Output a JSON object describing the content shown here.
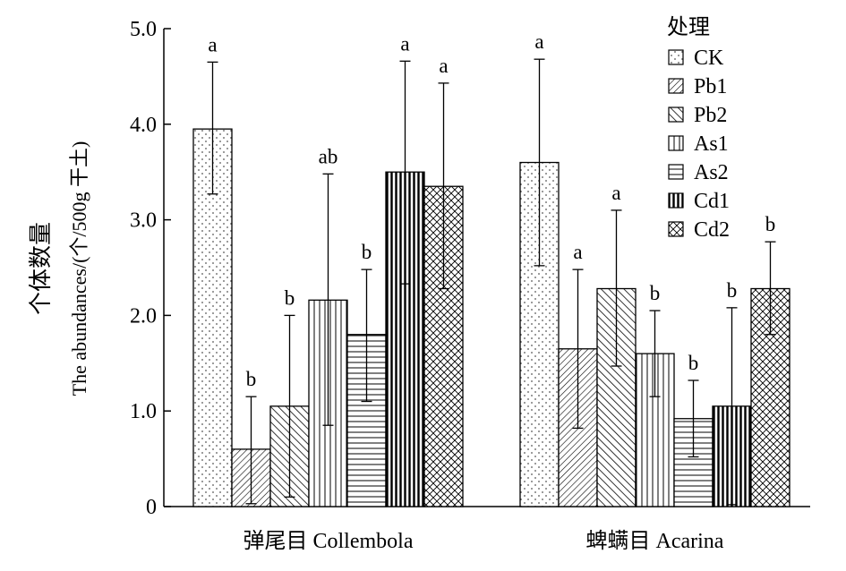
{
  "chart_data": {
    "type": "bar",
    "categories": [
      "弹尾目 Collembola",
      "蜱螨目 Acarina"
    ],
    "ylabel_cn": "个体数量",
    "ylabel_en": "The abundances/(个/500g 干土)",
    "ylim": [
      0,
      5
    ],
    "yticks": [
      {
        "value": 0,
        "label": "0"
      },
      {
        "value": 1,
        "label": "1.0"
      },
      {
        "value": 2,
        "label": "2.0"
      },
      {
        "value": 3,
        "label": "3.0"
      },
      {
        "value": 4,
        "label": "4.0"
      },
      {
        "value": 5,
        "label": "5.0"
      }
    ],
    "legend_title": "处理",
    "legend_position": "top-right",
    "grid": false,
    "series": [
      {
        "name": "CK",
        "pattern": "dots",
        "values": [
          3.95,
          3.6
        ],
        "err_low": [
          3.27,
          2.52
        ],
        "err_high": [
          4.65,
          4.68
        ],
        "letters": [
          "a",
          "a"
        ]
      },
      {
        "name": "Pb1",
        "pattern": "diag-fine",
        "values": [
          0.6,
          1.65
        ],
        "err_low": [
          0.03,
          0.82
        ],
        "err_high": [
          1.15,
          2.48
        ],
        "letters": [
          "b",
          "a"
        ]
      },
      {
        "name": "Pb2",
        "pattern": "diag-coarse",
        "values": [
          1.05,
          2.28
        ],
        "err_low": [
          0.1,
          1.47
        ],
        "err_high": [
          2.0,
          3.1
        ],
        "letters": [
          "b",
          "a"
        ]
      },
      {
        "name": "As1",
        "pattern": "vertical",
        "values": [
          2.16,
          1.6
        ],
        "err_low": [
          0.85,
          1.15
        ],
        "err_high": [
          3.48,
          2.05
        ],
        "letters": [
          "ab",
          "b"
        ]
      },
      {
        "name": "As2",
        "pattern": "horizontal",
        "values": [
          1.8,
          0.92
        ],
        "err_low": [
          1.1,
          0.52
        ],
        "err_high": [
          2.48,
          1.32
        ],
        "letters": [
          "b",
          "b"
        ]
      },
      {
        "name": "Cd1",
        "pattern": "vertical-bold",
        "values": [
          3.5,
          1.05
        ],
        "err_low": [
          2.33,
          0.02
        ],
        "err_high": [
          4.66,
          2.08
        ],
        "letters": [
          "a",
          "b"
        ]
      },
      {
        "name": "Cd2",
        "pattern": "crosshatch",
        "values": [
          3.35,
          2.28
        ],
        "err_low": [
          2.28,
          1.8
        ],
        "err_high": [
          4.43,
          2.77
        ],
        "letters": [
          "a",
          "b"
        ]
      }
    ]
  }
}
